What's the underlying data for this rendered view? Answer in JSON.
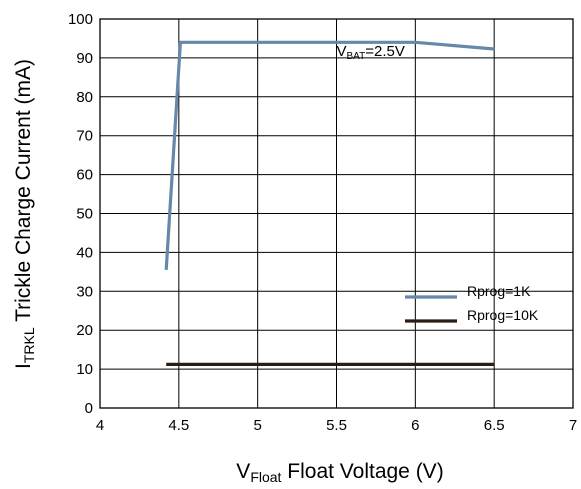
{
  "chart_data": {
    "type": "line",
    "title": "",
    "xlabel": {
      "main": "V",
      "sub": "Float",
      "rest": " Float Voltage (V)"
    },
    "ylabel": {
      "main": "I",
      "sub": "TRKL",
      "rest": " Trickle Charge Current (mA)"
    },
    "xlim": [
      4,
      7
    ],
    "ylim": [
      0,
      100
    ],
    "xticks": [
      "4",
      "4.5",
      "5",
      "5.5",
      "6",
      "6.5",
      "7"
    ],
    "yticks": [
      "0",
      "10",
      "20",
      "30",
      "40",
      "50",
      "60",
      "70",
      "80",
      "90",
      "100"
    ],
    "grid": true,
    "legend_position": "bottom-right",
    "series": [
      {
        "name": "Rprog=1K",
        "color": "#6688aa",
        "points": [
          [
            4.42,
            35.5
          ],
          [
            4.51,
            94
          ],
          [
            6.0,
            94
          ],
          [
            6.5,
            92.3
          ]
        ]
      },
      {
        "name": "Rprog=10K",
        "color": "#2b1d14",
        "points": [
          [
            4.42,
            11.2
          ],
          [
            6.5,
            11.2
          ]
        ]
      }
    ],
    "annotation": {
      "main": "V",
      "sub": "BAT",
      "rest": "=2.5V",
      "x": 5.5,
      "y": 90.5
    }
  }
}
